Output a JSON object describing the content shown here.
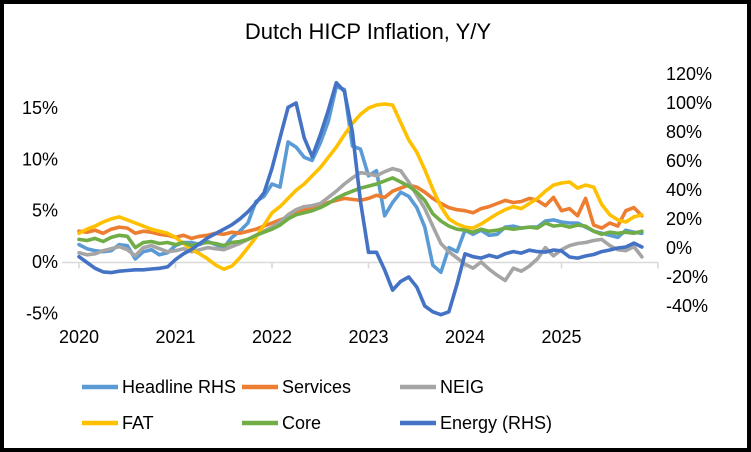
{
  "title": "Dutch HICP Inflation, Y/Y",
  "chart_data": {
    "type": "line",
    "title": "Dutch HICP Inflation, Y/Y",
    "x_range": {
      "start": "2020-01",
      "end": "2025-11",
      "freq": "monthly",
      "points": 71
    },
    "x_tick_labels": [
      "2020",
      "2021",
      "2022",
      "2023",
      "2024",
      "2025"
    ],
    "left_axis": {
      "tick_labels": [
        "15%",
        "10%",
        "5%",
        "0%",
        "-5%"
      ],
      "tick_values": [
        15,
        10,
        5,
        0,
        -5
      ],
      "ylim": [
        -5,
        15
      ]
    },
    "right_axis": {
      "tick_labels": [
        "120%",
        "100%",
        "80%",
        "60%",
        "40%",
        "20%",
        "0%",
        "-20%",
        "-40%"
      ],
      "tick_values": [
        120,
        100,
        80,
        60,
        40,
        20,
        0,
        -20,
        -40
      ],
      "ylim": [
        -40,
        120
      ]
    },
    "grid": "category-axis-line-only",
    "axis_line_color": "#D9D9D9",
    "legend_position": "bottom",
    "legend_rows": [
      [
        "Headline RHS",
        "Services",
        "NEIG"
      ],
      [
        "FAT",
        "Core",
        "Energy (RHS)"
      ]
    ],
    "series": [
      {
        "name": "Headline RHS",
        "color": "#5B9BD5",
        "axis": "left",
        "values": [
          1.7,
          1.3,
          1.1,
          1.0,
          1.1,
          1.7,
          1.6,
          0.3,
          1.0,
          1.2,
          0.7,
          0.9,
          1.6,
          1.9,
          1.9,
          1.7,
          2.0,
          1.7,
          1.4,
          2.4,
          3.0,
          3.8,
          5.9,
          6.4,
          7.6,
          7.3,
          11.7,
          11.2,
          10.2,
          9.9,
          11.6,
          13.7,
          17.1,
          16.8,
          11.3,
          11.0,
          8.4,
          8.9,
          4.5,
          5.8,
          6.8,
          6.4,
          5.3,
          3.4,
          -0.3,
          -1.0,
          1.4,
          1.0,
          3.1,
          2.7,
          3.1,
          2.6,
          2.7,
          3.4,
          3.5,
          3.3,
          3.4,
          3.4,
          4.0,
          4.1,
          3.9,
          3.8,
          3.8,
          3.4,
          3.0,
          2.8,
          2.6,
          2.4,
          3.1,
          2.9,
          2.8
        ]
      },
      {
        "name": "Services",
        "color": "#ED7D31",
        "axis": "left",
        "values": [
          3.0,
          2.9,
          3.1,
          2.8,
          3.2,
          3.4,
          3.3,
          2.8,
          3.0,
          2.9,
          2.7,
          2.6,
          2.4,
          2.6,
          2.3,
          2.5,
          2.6,
          2.8,
          2.7,
          2.9,
          2.8,
          3.0,
          3.2,
          3.5,
          3.8,
          4.1,
          4.4,
          4.8,
          5.1,
          5.3,
          5.5,
          5.8,
          6.0,
          6.2,
          6.1,
          6.0,
          6.2,
          6.5,
          6.3,
          6.9,
          7.2,
          7.5,
          7.3,
          6.8,
          6.2,
          5.7,
          5.3,
          5.1,
          5.0,
          4.8,
          5.2,
          5.4,
          5.7,
          6.0,
          5.8,
          5.9,
          6.2,
          6.0,
          5.5,
          6.3,
          5.0,
          5.2,
          4.5,
          6.2,
          3.6,
          3.3,
          3.8,
          3.5,
          5.0,
          5.3,
          4.5
        ]
      },
      {
        "name": "NEIG",
        "color": "#A5A5A5",
        "axis": "left",
        "values": [
          0.9,
          0.7,
          0.8,
          1.1,
          1.3,
          1.5,
          1.2,
          0.6,
          1.4,
          1.6,
          1.3,
          1.0,
          1.1,
          1.3,
          1.0,
          1.2,
          1.4,
          1.3,
          1.2,
          1.5,
          1.8,
          2.2,
          2.6,
          3.0,
          3.4,
          3.9,
          4.6,
          5.1,
          5.4,
          5.5,
          5.7,
          6.3,
          6.9,
          7.6,
          8.2,
          8.7,
          8.6,
          8.4,
          8.8,
          9.1,
          8.9,
          7.8,
          6.5,
          5.2,
          3.5,
          1.8,
          1.0,
          0.4,
          -0.2,
          -0.6,
          0.0,
          -0.7,
          -1.3,
          -1.8,
          -0.6,
          -0.9,
          -0.4,
          0.3,
          1.4,
          0.6,
          1.2,
          1.6,
          1.8,
          1.9,
          2.1,
          2.2,
          1.6,
          1.2,
          1.1,
          1.5,
          0.5
        ]
      },
      {
        "name": "FAT",
        "color": "#FFC000",
        "axis": "left",
        "values": [
          2.8,
          3.2,
          3.5,
          3.9,
          4.2,
          4.4,
          4.1,
          3.8,
          3.5,
          3.2,
          3.0,
          2.8,
          2.4,
          1.8,
          1.2,
          0.8,
          0.3,
          -0.3,
          -0.7,
          -0.4,
          0.4,
          1.4,
          2.4,
          3.6,
          4.8,
          5.4,
          6.2,
          7.0,
          7.6,
          8.4,
          9.2,
          10.2,
          11.2,
          12.4,
          13.5,
          14.4,
          15.0,
          15.3,
          15.4,
          15.3,
          13.6,
          11.9,
          10.7,
          9.0,
          7.1,
          5.4,
          4.2,
          3.7,
          3.4,
          3.3,
          3.7,
          4.2,
          4.7,
          5.1,
          5.4,
          5.2,
          5.7,
          6.2,
          6.9,
          7.5,
          7.7,
          7.8,
          7.2,
          7.5,
          7.3,
          5.6,
          4.6,
          4.1,
          3.9,
          4.4,
          4.6
        ]
      },
      {
        "name": "Core",
        "color": "#70AD47",
        "axis": "left",
        "values": [
          2.2,
          2.1,
          2.3,
          2.0,
          2.4,
          2.6,
          2.5,
          1.4,
          1.9,
          2.0,
          1.8,
          1.9,
          1.7,
          1.9,
          1.6,
          1.8,
          1.9,
          1.8,
          1.6,
          1.9,
          2.0,
          2.2,
          2.6,
          2.9,
          3.2,
          3.6,
          4.2,
          4.6,
          4.8,
          5.0,
          5.3,
          5.7,
          6.2,
          6.6,
          6.9,
          7.2,
          7.4,
          7.6,
          7.9,
          8.2,
          7.8,
          7.4,
          6.8,
          6.0,
          4.7,
          4.0,
          3.5,
          3.2,
          3.1,
          2.9,
          3.2,
          3.0,
          3.1,
          3.3,
          3.2,
          3.3,
          3.4,
          3.3,
          3.8,
          3.5,
          3.6,
          3.4,
          3.6,
          3.5,
          3.0,
          2.7,
          2.9,
          2.8,
          2.9,
          2.8,
          3.0
        ]
      },
      {
        "name": "Energy (RHS)",
        "color": "#4472C4",
        "axis": "right",
        "values": [
          -6,
          -10,
          -14,
          -16.5,
          -17,
          -16,
          -15.5,
          -15,
          -15,
          -14.5,
          -14,
          -13,
          -8,
          -4,
          -1,
          3,
          7,
          10,
          13,
          16,
          20,
          25,
          31,
          38,
          55,
          76,
          97,
          100,
          76,
          63,
          78,
          95,
          114,
          108,
          80,
          32,
          -3,
          -3,
          -15,
          -29,
          -23,
          -20,
          -27,
          -40,
          -44,
          -46,
          -44,
          -25,
          -4,
          -6,
          -7,
          -5,
          -6.5,
          -4,
          -2.5,
          -3.5,
          -1.5,
          -2.5,
          -2.8,
          -1.4,
          -2,
          -6.2,
          -7,
          -5.5,
          -4.5,
          -2.5,
          -1.4,
          0,
          0.7,
          3.4,
          0.7
        ]
      }
    ]
  }
}
